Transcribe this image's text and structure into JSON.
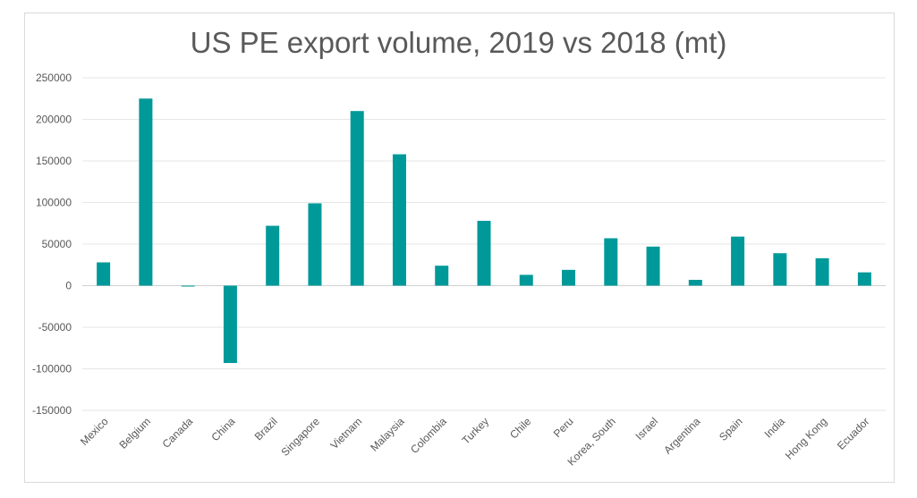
{
  "chart_data": {
    "type": "bar",
    "title": "US PE export volume, 2019 vs 2018 (mt)",
    "xlabel": "",
    "ylabel": "",
    "ylim": [
      -150000,
      250000
    ],
    "yticks": [
      250000,
      200000,
      150000,
      100000,
      50000,
      0,
      -50000,
      -100000,
      -150000
    ],
    "ytick_labels": [
      "250000",
      "200000",
      "150000",
      "100000",
      "50000",
      "0",
      "-50000",
      "-100000",
      "-150000"
    ],
    "grid": true,
    "categories": [
      "Mexico",
      "Belgium",
      "Canada",
      "China",
      "Brazil",
      "Singapore",
      "Vietnam",
      "Malaysia",
      "Colombia",
      "Turkey",
      "Chile",
      "Peru",
      "Korea, South",
      "Israel",
      "Argentina",
      "Spain",
      "India",
      "Hong Kong",
      "Ecuador"
    ],
    "values": [
      28000,
      225000,
      -1000,
      -93000,
      72000,
      99000,
      210000,
      158000,
      24000,
      78000,
      13000,
      19000,
      57000,
      47000,
      7000,
      59000,
      39000,
      33000,
      16000
    ],
    "bar_color": "#009999",
    "grid_color": "#e6e6e6"
  }
}
